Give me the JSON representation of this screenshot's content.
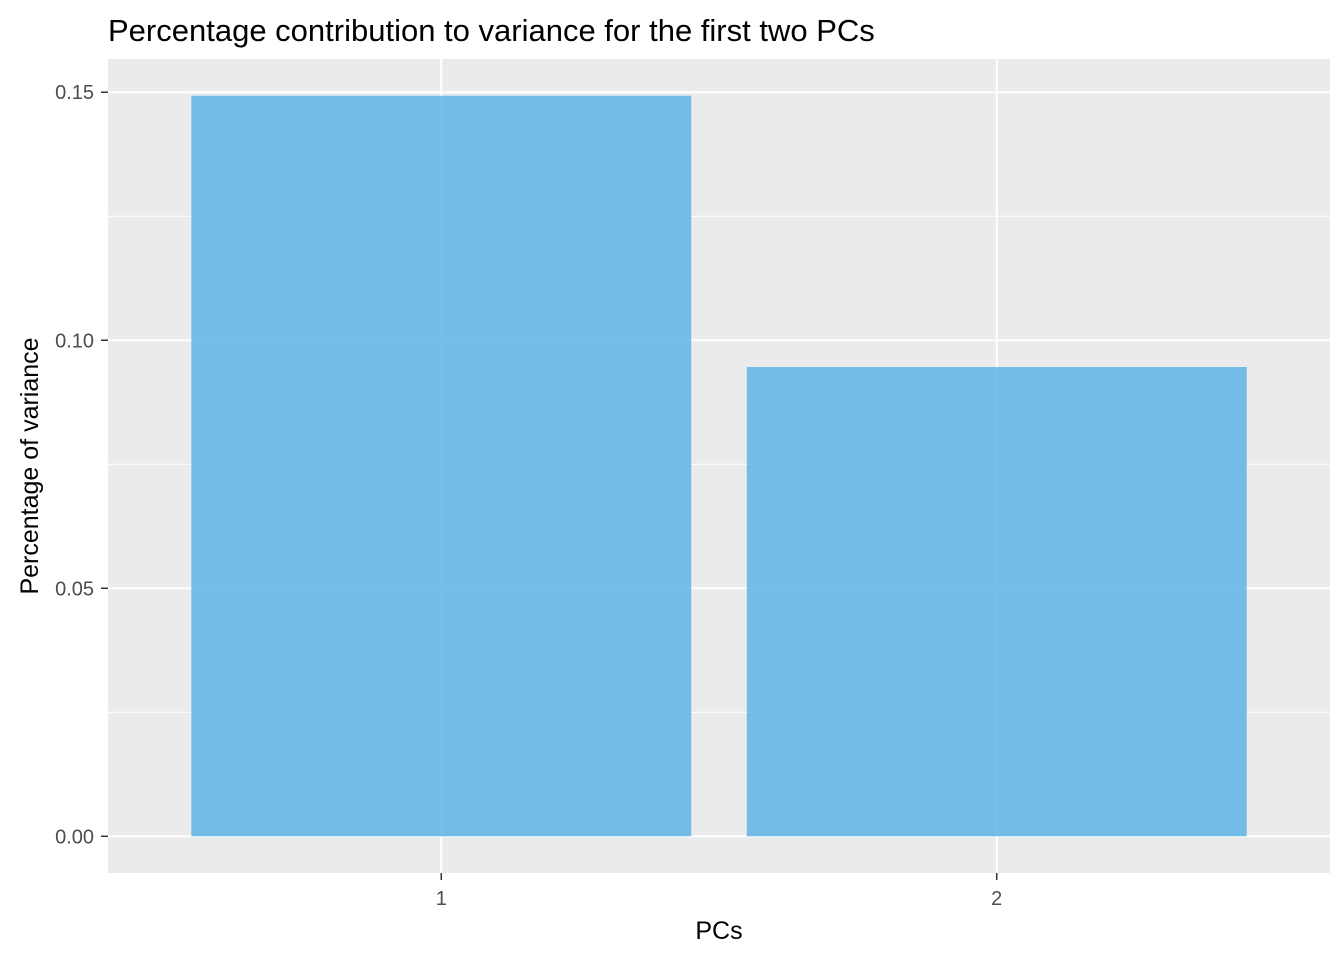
{
  "chart_data": {
    "type": "bar",
    "title": "Percentage contribution to variance for the first two PCs",
    "xlabel": "PCs",
    "ylabel": "Percentage of variance",
    "categories": [
      "1",
      "2"
    ],
    "values": [
      0.1493,
      0.0946
    ],
    "ylim": [
      -0.0074,
      0.1567
    ],
    "yticks": [
      0.0,
      0.05,
      0.1,
      0.15
    ],
    "ytick_labels": [
      "0.00",
      "0.05",
      "0.10",
      "0.15"
    ],
    "grid": true,
    "legend": "none",
    "colors": {
      "bar": "#5DB4E5",
      "panel": "#EBEBEB",
      "grid": "#FFFFFF",
      "tick": "#333333"
    }
  }
}
